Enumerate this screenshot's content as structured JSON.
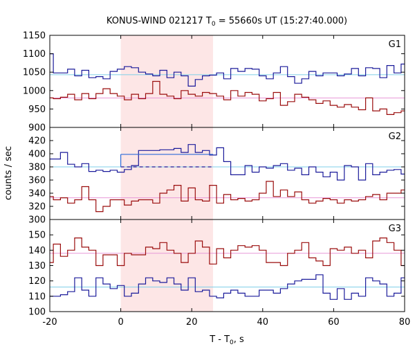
{
  "chart_data": {
    "type": "line",
    "title": "KONUS-WIND 021217 T",
    "title_sub": "0",
    "title_rest": " = 55660s UT (15:27:40.000)",
    "xlabel": "T - T",
    "xlabel_sub": "0",
    "xlabel_rest": ", s",
    "ylabel": "counts / sec",
    "xlim": [
      -20,
      80
    ],
    "xticks": [
      -20,
      0,
      20,
      40,
      60,
      80
    ],
    "highlight_interval": [
      0,
      26
    ],
    "bin_width": 2.0,
    "x_start": -21,
    "colors": {
      "blue": "#1a1a9a",
      "red": "#9a0c0c",
      "bg_blue": "#7fcfe8",
      "bg_red": "#e898d8",
      "band": "#fde6e6",
      "fit_line": "#2a6ad8",
      "fit_dash": "#1a1a9a"
    },
    "panels": [
      {
        "label": "G1",
        "ylim": [
          900,
          1150
        ],
        "yticks": [
          900,
          950,
          1000,
          1050,
          1100,
          1150
        ],
        "series": [
          {
            "color_key": "blue",
            "values": [
              1100,
              1048,
              1048,
              1058,
              1040,
              1055,
              1035,
              1038,
              1032,
              1052,
              1058,
              1065,
              1062,
              1050,
              1045,
              1040,
              1055,
              1035,
              1050,
              1040,
              1012,
              1030,
              1040,
              1042,
              1048,
              1032,
              1060,
              1052,
              1060,
              1058,
              1040,
              1032,
              1048,
              1065,
              1038,
              1020,
              1032,
              1052,
              1040,
              1048,
              1048,
              1040,
              1045,
              1060,
              1040,
              1062,
              1060,
              1035,
              1068,
              1048,
              1072,
              1075
            ]
          },
          {
            "color_key": "red",
            "values": [
              980,
              978,
              982,
              990,
              975,
              992,
              978,
              992,
              1005,
              992,
              985,
              975,
              990,
              978,
              992,
              1025,
              990,
              985,
              978,
              1000,
              990,
              985,
              995,
              992,
              985,
              975,
              1000,
              985,
              995,
              990,
              972,
              978,
              995,
              960,
              970,
              990,
              982,
              975,
              965,
              972,
              960,
              955,
              962,
              955,
              948,
              980,
              945,
              950,
              935,
              940,
              945,
              945
            ]
          }
        ],
        "backgrounds": [
          {
            "color_key": "bg_blue",
            "value": 1043
          },
          {
            "color_key": "bg_red",
            "value": 980
          }
        ]
      },
      {
        "label": "G2",
        "ylim": [
          300,
          440
        ],
        "yticks": [
          300,
          320,
          340,
          360,
          380,
          400,
          420
        ],
        "series": [
          {
            "color_key": "blue",
            "values": [
              392,
              392,
              402,
              384,
              380,
              385,
              373,
              375,
              373,
              375,
              372,
              376,
              382,
              405,
              405,
              405,
              406,
              406,
              408,
              402,
              414,
              402,
              405,
              398,
              409,
              388,
              368,
              368,
              382,
              372,
              380,
              378,
              382,
              385,
              375,
              378,
              368,
              380,
              372,
              365,
              372,
              360,
              382,
              380,
              360,
              385,
              368,
              372,
              375,
              376,
              369,
              385
            ]
          },
          {
            "color_key": "red",
            "values": [
              335,
              330,
              333,
              325,
              330,
              350,
              330,
              312,
              320,
              330,
              330,
              322,
              328,
              330,
              330,
              325,
              340,
              345,
              352,
              328,
              348,
              330,
              328,
              352,
              325,
              338,
              330,
              332,
              328,
              330,
              340,
              358,
              335,
              345,
              335,
              342,
              330,
              325,
              328,
              332,
              330,
              325,
              330,
              328,
              330,
              335,
              338,
              330,
              340,
              340,
              345,
              343
            ]
          }
        ],
        "backgrounds": [
          {
            "color_key": "bg_blue",
            "value": 380
          },
          {
            "color_key": "bg_red",
            "value": 333
          }
        ],
        "fit": {
          "x": [
            0,
            26
          ],
          "solid": 399,
          "dashed": 380
        }
      },
      {
        "label": "G3",
        "ylim": [
          100,
          160
        ],
        "yticks": [
          100,
          110,
          120,
          130,
          140,
          150
        ],
        "series": [
          {
            "color_key": "blue",
            "values": [
              110,
              110,
              111,
              113,
              122,
              114,
              110,
              122,
              118,
              115,
              117,
              110,
              112,
              118,
              122,
              120,
              119,
              122,
              118,
              114,
              122,
              113,
              114,
              110,
              109,
              112,
              114,
              112,
              110,
              110,
              114,
              114,
              112,
              115,
              118,
              120,
              121,
              121,
              124,
              112,
              108,
              115,
              108,
              112,
              110,
              122,
              120,
              118,
              110,
              112,
              122,
              127
            ]
          },
          {
            "color_key": "red",
            "values": [
              132,
              144,
              136,
              140,
              148,
              142,
              140,
              130,
              137,
              137,
              130,
              138,
              137,
              137,
              142,
              141,
              145,
              140,
              138,
              132,
              138,
              146,
              142,
              131,
              141,
              135,
              140,
              143,
              142,
              143,
              140,
              132,
              132,
              130,
              138,
              140,
              145,
              135,
              133,
              130,
              141,
              140,
              142,
              138,
              140,
              135,
              146,
              148,
              145,
              140,
              130,
              135
            ]
          }
        ],
        "backgrounds": [
          {
            "color_key": "bg_blue",
            "value": 116
          },
          {
            "color_key": "bg_red",
            "value": 138
          }
        ]
      }
    ]
  }
}
